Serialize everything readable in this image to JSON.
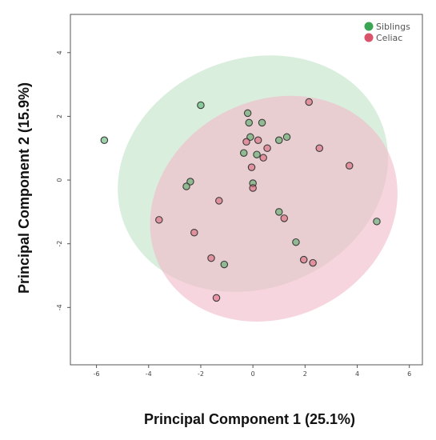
{
  "chart_data": {
    "type": "scatter",
    "xlabel": "Principal Component 1 (25.1%)",
    "ylabel": "Principal Component 2 (15.9%)",
    "xlim": [
      -7,
      6.5
    ],
    "ylim": [
      -5.8,
      5.2
    ],
    "xticks": [
      -6,
      -4,
      -2,
      0,
      2,
      4,
      6
    ],
    "yticks": [
      -4,
      -2,
      0,
      2,
      4
    ],
    "grid": false,
    "legend_position": "top-right",
    "series": [
      {
        "name": "Siblings",
        "color": "#3aa655",
        "ellipse_fill": "#bfe3c4",
        "ellipse": {
          "cx": 0.0,
          "cy": 0.2,
          "rx": 5.3,
          "ry": 3.6,
          "angle_deg": -22
        },
        "points": [
          [
            -5.7,
            1.25
          ],
          [
            -2.0,
            2.35
          ],
          [
            -0.2,
            2.1
          ],
          [
            -0.15,
            1.8
          ],
          [
            0.35,
            1.8
          ],
          [
            1.3,
            1.35
          ],
          [
            1.0,
            1.25
          ],
          [
            -0.1,
            1.35
          ],
          [
            -0.35,
            0.85
          ],
          [
            0.15,
            0.8
          ],
          [
            -2.4,
            -0.05
          ],
          [
            -2.55,
            -0.2
          ],
          [
            0.0,
            -0.1
          ],
          [
            1.0,
            -1.0
          ],
          [
            1.65,
            -1.95
          ],
          [
            -1.1,
            -2.65
          ],
          [
            4.75,
            -1.3
          ]
        ]
      },
      {
        "name": "Celiac",
        "color": "#d9546a",
        "ellipse_fill": "#f2b9c8",
        "ellipse": {
          "cx": 0.8,
          "cy": -0.9,
          "rx": 4.9,
          "ry": 3.4,
          "angle_deg": -28
        },
        "points": [
          [
            2.15,
            2.45
          ],
          [
            0.2,
            1.25
          ],
          [
            -0.25,
            1.2
          ],
          [
            0.55,
            1.0
          ],
          [
            2.55,
            1.0
          ],
          [
            0.4,
            0.7
          ],
          [
            -0.05,
            0.4
          ],
          [
            3.7,
            0.45
          ],
          [
            0.0,
            -0.25
          ],
          [
            -1.3,
            -0.65
          ],
          [
            -3.6,
            -1.25
          ],
          [
            1.2,
            -1.2
          ],
          [
            -2.25,
            -1.65
          ],
          [
            -1.6,
            -2.45
          ],
          [
            1.95,
            -2.5
          ],
          [
            2.3,
            -2.6
          ],
          [
            -1.4,
            -3.7
          ]
        ]
      }
    ]
  }
}
